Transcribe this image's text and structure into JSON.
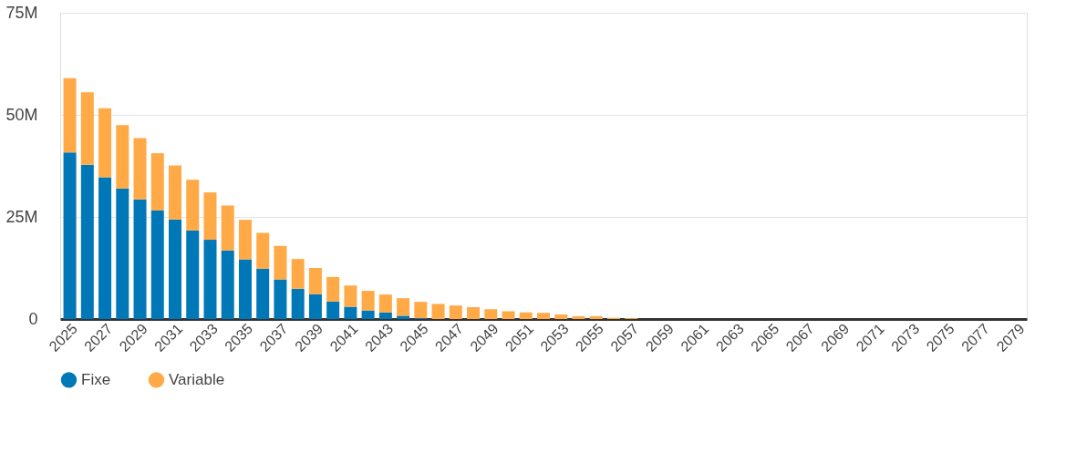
{
  "chart_data": {
    "type": "bar",
    "stacked": true,
    "categories": [
      "2025",
      null,
      "2027",
      null,
      "2029",
      null,
      "2031",
      null,
      "2033",
      null,
      "2035",
      null,
      "2037",
      null,
      "2039",
      null,
      "2041",
      null,
      "2043",
      null,
      "2045",
      null,
      "2047",
      null,
      "2049",
      null,
      "2051",
      null,
      "2053",
      null,
      "2055",
      null,
      "2057",
      null,
      "2059",
      null,
      "2061",
      null,
      "2063",
      null,
      "2065",
      null,
      "2067",
      null,
      "2069",
      null,
      "2071",
      null,
      "2073",
      null,
      "2075",
      null,
      "2077",
      null,
      "2079"
    ],
    "series": [
      {
        "name": "Fixe",
        "color": "#0077b6",
        "values": [
          40800000,
          37800000,
          34700000,
          32000000,
          29300000,
          26600000,
          24400000,
          21700000,
          19400000,
          16800000,
          14600000,
          12300000,
          9700000,
          7400000,
          6100000,
          4300000,
          3000000,
          2100000,
          1600000,
          800000,
          200000,
          0,
          0,
          0,
          0,
          0,
          0,
          0,
          0,
          0,
          0,
          0,
          0,
          0,
          0,
          0,
          0,
          0,
          0,
          0,
          0,
          0,
          0,
          0,
          0,
          0,
          0,
          0,
          0,
          0,
          0,
          0,
          0,
          0,
          0
        ]
      },
      {
        "name": "Variable",
        "color": "#ffaa46",
        "values": [
          18200000,
          17700000,
          16900000,
          15500000,
          15000000,
          14000000,
          13200000,
          12400000,
          11600000,
          11000000,
          9700000,
          8800000,
          8200000,
          7300000,
          6400000,
          6000000,
          5200000,
          4800000,
          4400000,
          4300000,
          4000000,
          3700000,
          3300000,
          2900000,
          2400000,
          1900000,
          1600000,
          1500000,
          1100000,
          700000,
          700000,
          300000,
          200000,
          0,
          0,
          0,
          0,
          0,
          0,
          0,
          0,
          0,
          0,
          0,
          0,
          0,
          0,
          0,
          0,
          0,
          0,
          0,
          0,
          0,
          0
        ]
      }
    ],
    "ylim": [
      0,
      75000000
    ],
    "yticks": [
      {
        "value": 0,
        "label": "0"
      },
      {
        "value": 25000000,
        "label": "25M"
      },
      {
        "value": 50000000,
        "label": "50M"
      },
      {
        "value": 75000000,
        "label": "75M"
      }
    ],
    "grid": "y",
    "legend": "bottom"
  }
}
